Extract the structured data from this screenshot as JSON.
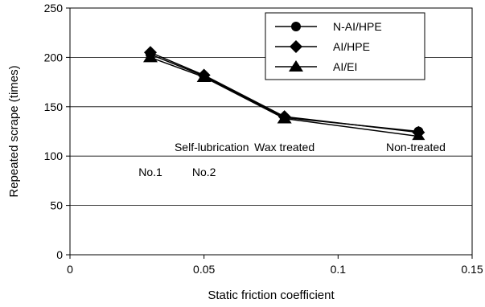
{
  "chart_data": {
    "type": "line",
    "xlabel": "Static friction coefficient",
    "ylabel": "Repeated scrape (times)",
    "xlim": [
      0,
      0.15
    ],
    "ylim": [
      0,
      250
    ],
    "xticks": [
      0,
      0.05,
      0.1,
      0.15
    ],
    "xtick_labels": [
      "0",
      "0.05",
      "0.1",
      "0.15"
    ],
    "yticks": [
      0,
      50,
      100,
      150,
      200,
      250
    ],
    "ytick_labels": [
      "0",
      "50",
      "100",
      "150",
      "200",
      "250"
    ],
    "grid": "horizontal",
    "legend_position": "top-right",
    "series": [
      {
        "name": "N-AI/HPE",
        "marker": "circle",
        "color": "#000000",
        "x": [
          0.03,
          0.05,
          0.08,
          0.13
        ],
        "y": [
          203,
          181,
          139,
          125
        ]
      },
      {
        "name": "AI/HPE",
        "marker": "diamond",
        "color": "#000000",
        "x": [
          0.03,
          0.05,
          0.08,
          0.13
        ],
        "y": [
          205,
          182,
          140,
          124
        ]
      },
      {
        "name": "AI/EI",
        "marker": "triangle",
        "color": "#000000",
        "x": [
          0.03,
          0.05,
          0.08,
          0.13
        ],
        "y": [
          200,
          180,
          138,
          120
        ]
      }
    ],
    "annotations": [
      {
        "text": "Self-lubrication treated",
        "x": 0.06,
        "y": 109
      },
      {
        "text": "No.1",
        "x": 0.03,
        "y": 84
      },
      {
        "text": "No.2",
        "x": 0.05,
        "y": 84
      },
      {
        "text": "Wax treated",
        "x": 0.08,
        "y": 109
      },
      {
        "text": "Non-treated",
        "x": 0.129,
        "y": 109
      }
    ]
  }
}
